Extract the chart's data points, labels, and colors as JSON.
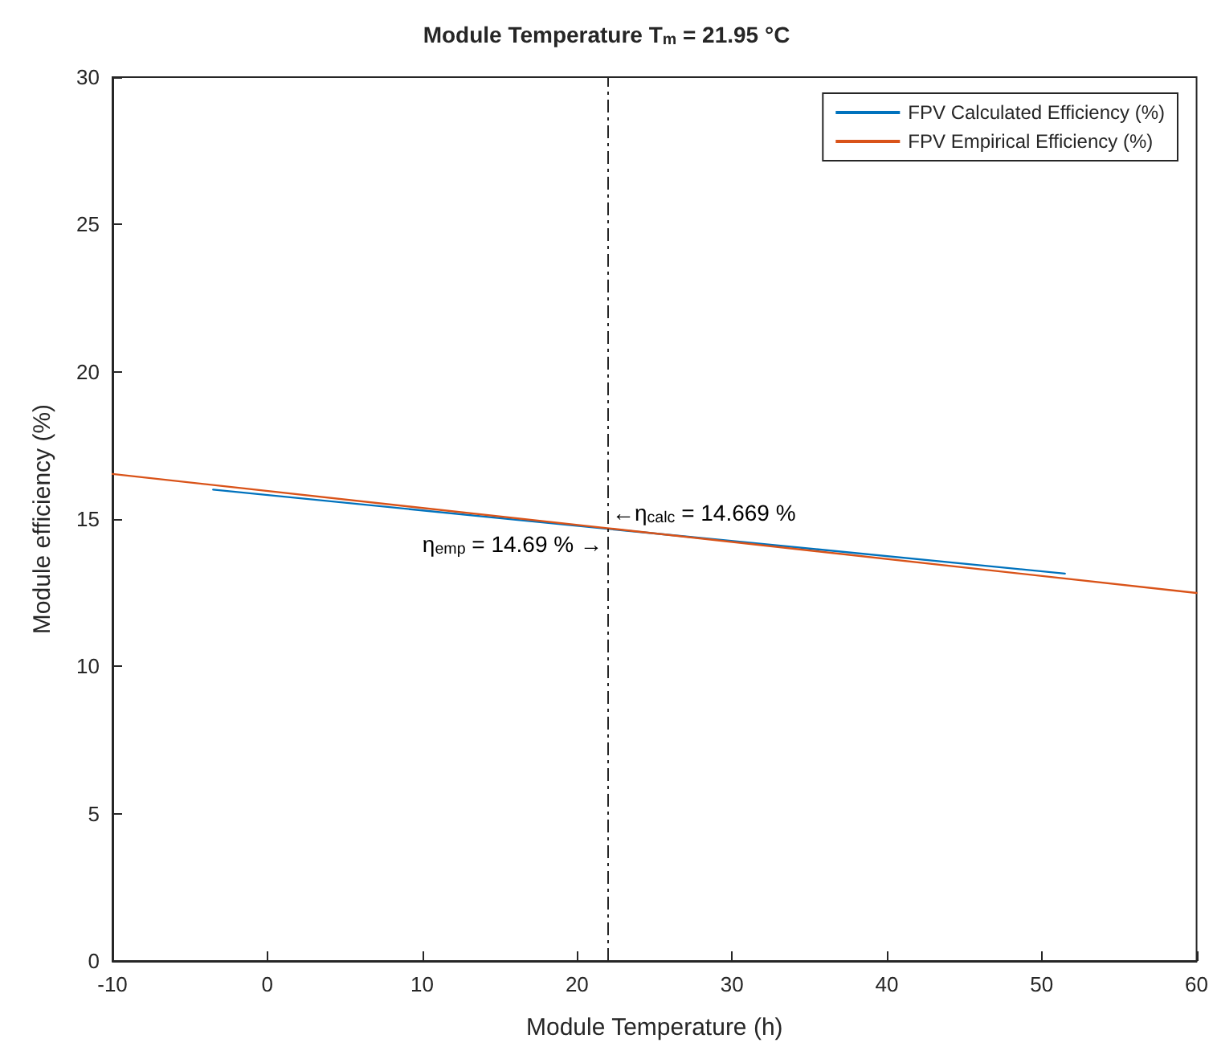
{
  "chart_data": {
    "type": "line",
    "title": "Module Temperature T$_{m}$ = 21.95 °C",
    "xlabel": "Module Temperature (h)",
    "ylabel": "Module efficiency (%)",
    "xlim": [
      -10,
      60
    ],
    "xticks": [
      -10,
      0,
      10,
      20,
      30,
      40,
      50,
      60
    ],
    "ylim": [
      0,
      30
    ],
    "yticks": [
      0,
      5,
      10,
      15,
      20,
      25,
      30
    ],
    "grid": false,
    "legend": "top right",
    "marker": "none",
    "line_style": "solid",
    "series": [
      {
        "name": "FPV Calculated Efficiency (%)",
        "color": "#0072bd",
        "x": [
          -3.5,
          21.95,
          51.5
        ],
        "values": [
          16.0,
          14.67,
          13.15
        ]
      },
      {
        "name": "FPV Empirical Efficiency (%)",
        "color": "#d95319",
        "x": [
          -10,
          21.95,
          60
        ],
        "values": [
          16.53,
          14.69,
          12.49
        ]
      }
    ],
    "ref_lines": [
      {
        "axis": "x",
        "value": 21.95,
        "label": null,
        "color": "#262626",
        "line_style": "dashdot"
      }
    ],
    "annotations": [
      {
        "text": "η$_{emp}$ = 14.69 % →",
        "x": 21.95,
        "y": 14.69
      },
      {
        "text": "←η$_{calc}$ = 14.669 %",
        "x": 21.95,
        "y": 14.669
      }
    ]
  }
}
